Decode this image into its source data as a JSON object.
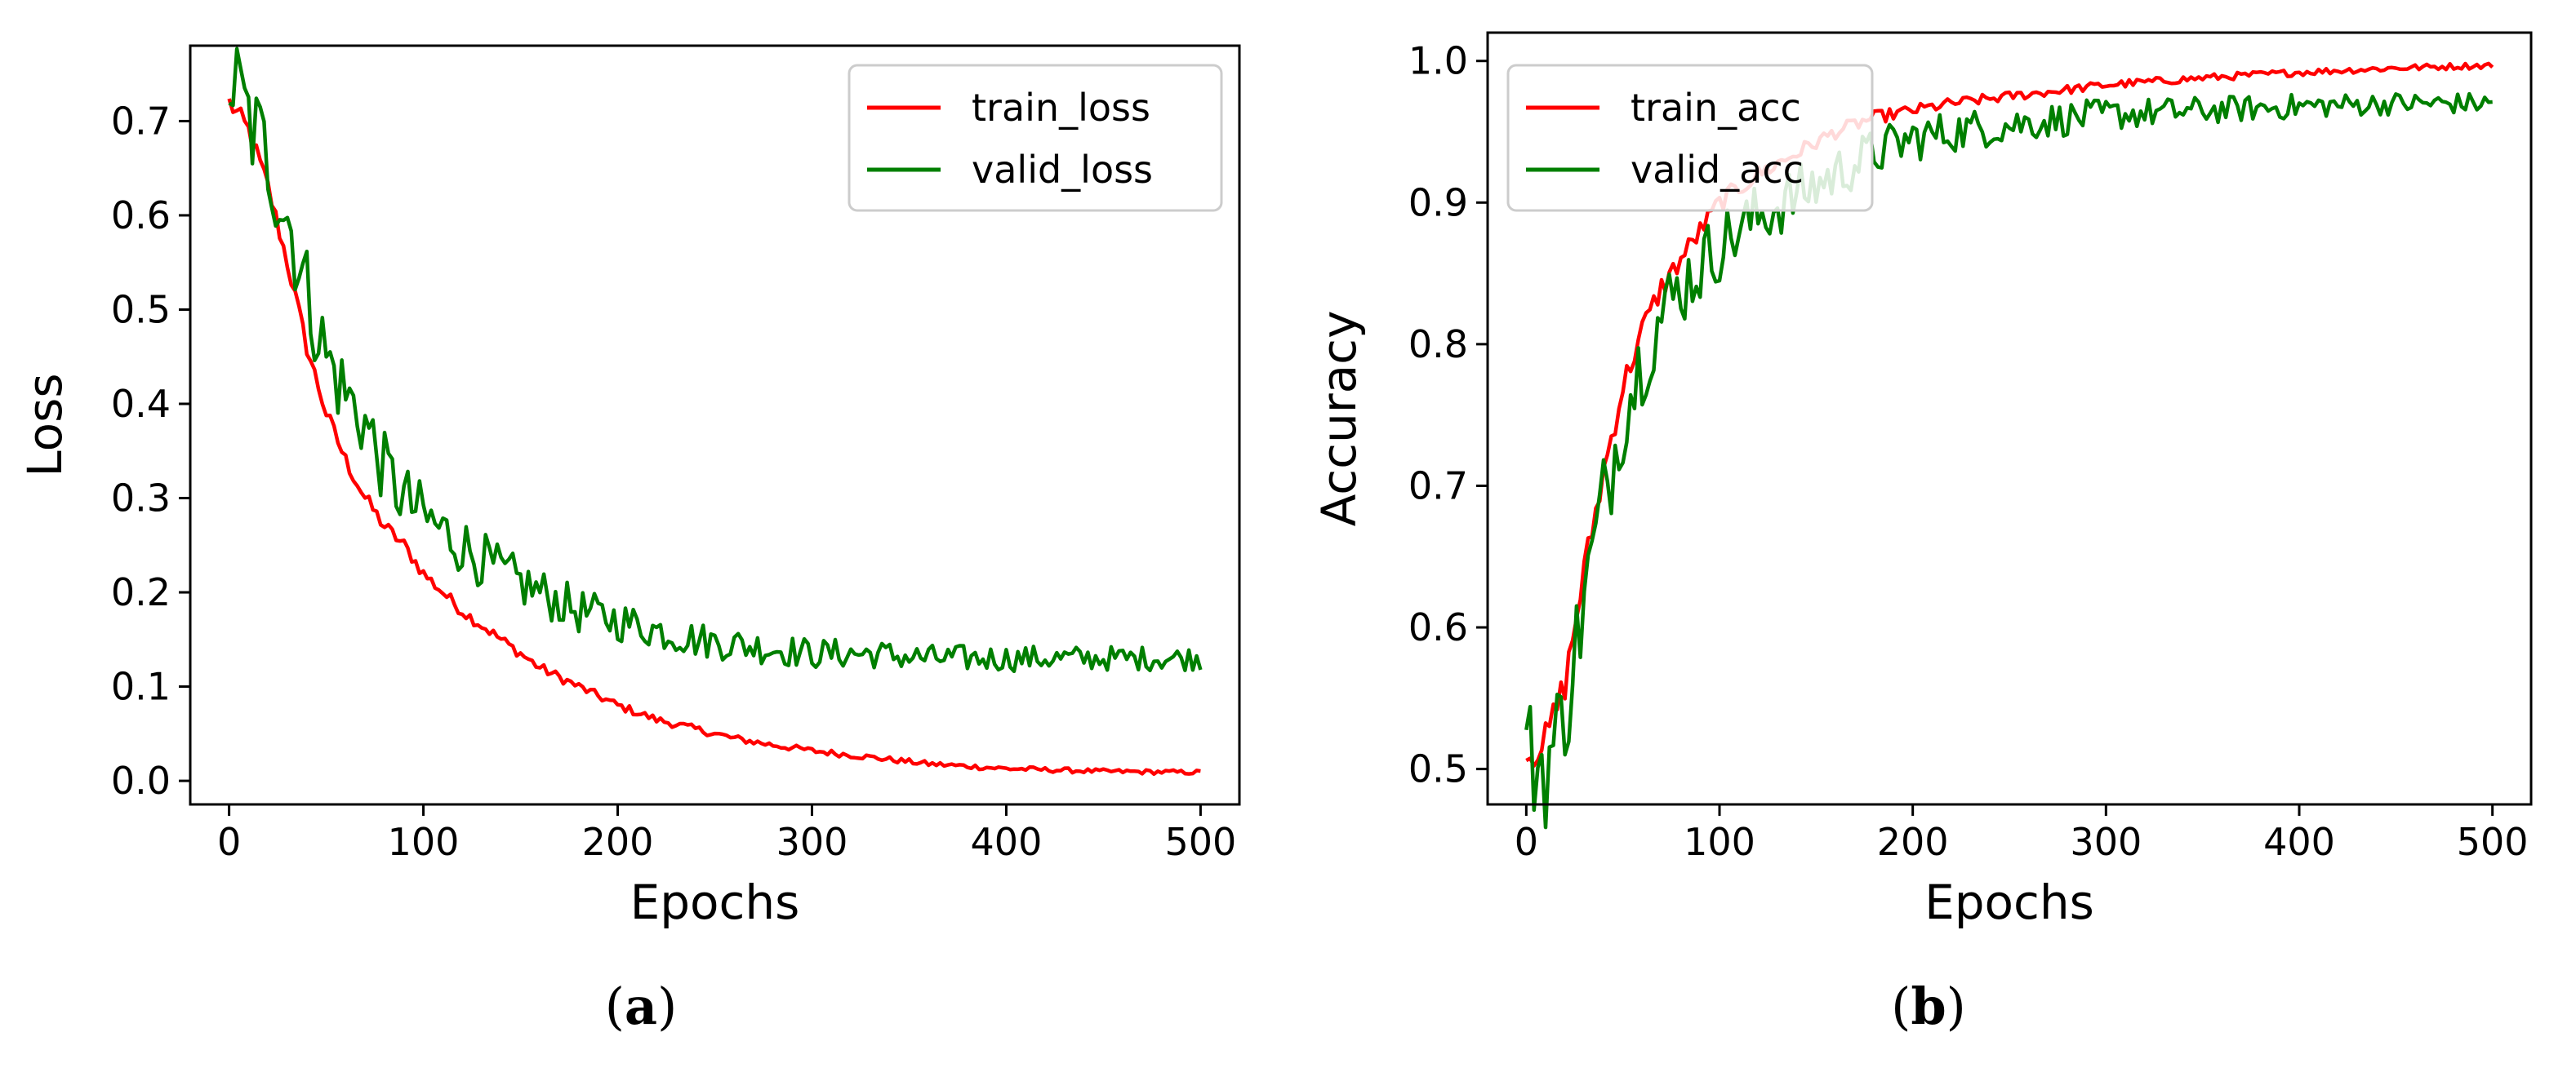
{
  "figure": {
    "captions": [
      {
        "open": "(",
        "letter": "a",
        "close": ")"
      },
      {
        "open": "(",
        "letter": "b",
        "close": ")"
      }
    ]
  },
  "chart_data": [
    {
      "type": "line",
      "title": "",
      "xlabel": "Epochs",
      "ylabel": "Loss",
      "xlim": [
        -20,
        520
      ],
      "ylim": [
        -0.025,
        0.78
      ],
      "xticks": [
        0,
        100,
        200,
        300,
        400,
        500
      ],
      "yticks": [
        0.0,
        0.1,
        0.2,
        0.3,
        0.4,
        0.5,
        0.6,
        0.7
      ],
      "ytick_labels": [
        "0.0",
        "0.1",
        "0.2",
        "0.3",
        "0.4",
        "0.5",
        "0.6",
        "0.7"
      ],
      "grid": false,
      "legend": "top-right",
      "series": [
        {
          "name": "train_loss",
          "color": "#ff0000",
          "x": [
            0,
            10,
            20,
            30,
            40,
            50,
            60,
            70,
            80,
            90,
            100,
            120,
            140,
            160,
            180,
            200,
            220,
            240,
            260,
            280,
            300,
            330,
            360,
            400,
            450,
            500
          ],
          "y": [
            0.72,
            0.69,
            0.63,
            0.55,
            0.46,
            0.39,
            0.34,
            0.3,
            0.27,
            0.25,
            0.22,
            0.18,
            0.15,
            0.12,
            0.1,
            0.08,
            0.065,
            0.055,
            0.045,
            0.038,
            0.032,
            0.025,
            0.018,
            0.013,
            0.01,
            0.009
          ]
        },
        {
          "name": "valid_loss",
          "color": "#007f00",
          "x": [
            0,
            10,
            20,
            30,
            40,
            50,
            60,
            70,
            80,
            90,
            100,
            120,
            140,
            160,
            180,
            200,
            220,
            240,
            260,
            280,
            300,
            330,
            360,
            400,
            450,
            500
          ],
          "y": [
            0.75,
            0.7,
            0.66,
            0.6,
            0.52,
            0.45,
            0.41,
            0.38,
            0.33,
            0.3,
            0.28,
            0.25,
            0.22,
            0.2,
            0.18,
            0.17,
            0.16,
            0.15,
            0.145,
            0.14,
            0.135,
            0.135,
            0.13,
            0.13,
            0.13,
            0.13
          ]
        }
      ]
    },
    {
      "type": "line",
      "title": "",
      "xlabel": "Epochs",
      "ylabel": "Accuracy",
      "xlim": [
        -20,
        520
      ],
      "ylim": [
        0.475,
        1.02
      ],
      "xticks": [
        0,
        100,
        200,
        300,
        400,
        500
      ],
      "yticks": [
        0.5,
        0.6,
        0.7,
        0.8,
        0.9,
        1.0
      ],
      "ytick_labels": [
        "0.5",
        "0.6",
        "0.7",
        "0.8",
        "0.9",
        "1.0"
      ],
      "grid": false,
      "legend": "top-left",
      "series": [
        {
          "name": "train_acc",
          "color": "#ff0000",
          "x": [
            0,
            10,
            20,
            30,
            40,
            50,
            60,
            70,
            80,
            90,
            100,
            120,
            140,
            160,
            180,
            200,
            220,
            250,
            300,
            350,
            400,
            450,
            500
          ],
          "y": [
            0.51,
            0.52,
            0.56,
            0.64,
            0.71,
            0.77,
            0.81,
            0.84,
            0.86,
            0.88,
            0.9,
            0.92,
            0.935,
            0.95,
            0.96,
            0.965,
            0.97,
            0.975,
            0.983,
            0.988,
            0.992,
            0.995,
            0.997
          ]
        },
        {
          "name": "valid_acc",
          "color": "#007f00",
          "x": [
            0,
            10,
            20,
            30,
            40,
            50,
            60,
            70,
            80,
            90,
            100,
            120,
            140,
            160,
            180,
            200,
            220,
            250,
            300,
            350,
            400,
            450,
            500
          ],
          "y": [
            0.51,
            0.5,
            0.54,
            0.62,
            0.69,
            0.75,
            0.79,
            0.82,
            0.84,
            0.855,
            0.87,
            0.89,
            0.905,
            0.92,
            0.935,
            0.945,
            0.95,
            0.955,
            0.962,
            0.965,
            0.968,
            0.97,
            0.97
          ]
        }
      ]
    }
  ]
}
